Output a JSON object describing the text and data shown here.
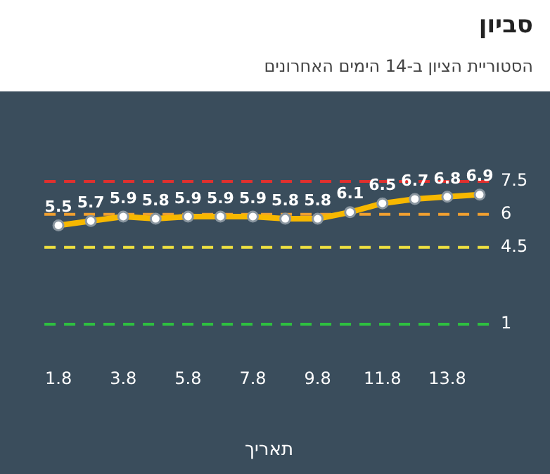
{
  "chart_data": {
    "type": "line",
    "title": "סביון",
    "subtitle": "הסטוריית הציון ב-14 הימים האחרונים",
    "xlabel": "תאריך",
    "categories": [
      "1.8",
      null,
      "3.8",
      null,
      "5.8",
      null,
      "7.8",
      null,
      "9.8",
      null,
      "11.8",
      null,
      "13.8",
      null
    ],
    "series": [
      {
        "color": "#f7b800",
        "values": [
          5.5,
          5.7,
          5.9,
          5.8,
          5.9,
          5.9,
          5.9,
          5.8,
          5.8,
          6.1,
          6.5,
          6.7,
          6.8,
          6.9
        ]
      }
    ],
    "tick_labels": "x",
    "grid": false,
    "legend": false,
    "marker": "circle",
    "line_style": "solid",
    "data_labels": true,
    "ref_lines": [
      {
        "axis": "y",
        "value": 7.5,
        "label": "7.5",
        "color": "#e0302e",
        "line_style": "dashed"
      },
      {
        "axis": "y",
        "value": 6,
        "label": "6",
        "color": "#f0a030",
        "line_style": "dashed"
      },
      {
        "axis": "y",
        "value": 4.5,
        "label": "4.5",
        "color": "#eee040",
        "line_style": "dashed"
      },
      {
        "axis": "y",
        "value": 1,
        "label": "1",
        "color": "#2ec040",
        "line_style": "dashed"
      }
    ]
  }
}
